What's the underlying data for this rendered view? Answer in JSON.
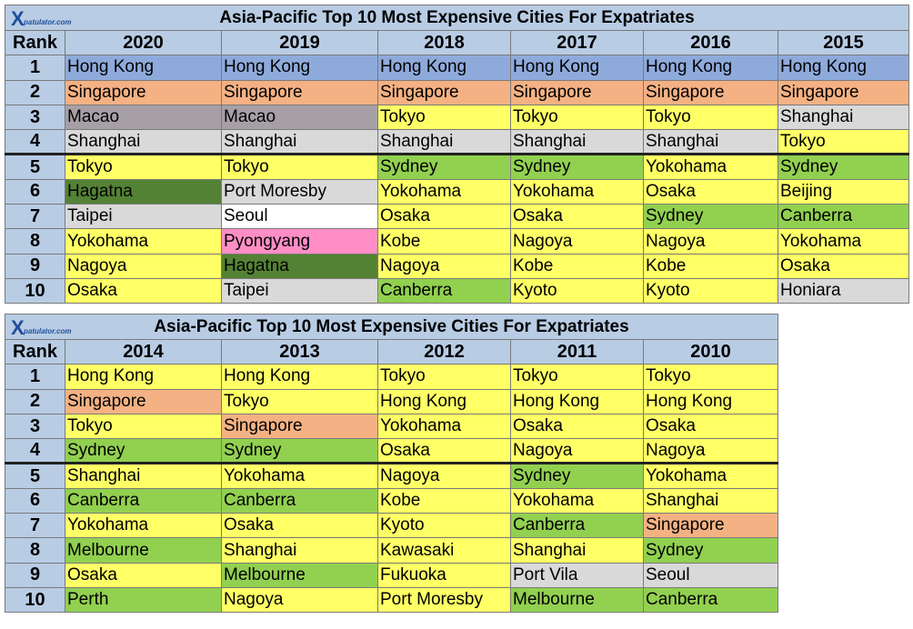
{
  "logo": {
    "brand": "Xpatulator.com"
  },
  "colors": {
    "header": "#b8cce4",
    "hong_kong": "#8eaadb",
    "yellow": "#ffff66",
    "salmon": "#f4b183",
    "gray": "#a6a0a6",
    "light_gray": "#d9d9d9",
    "green": "#92d050",
    "dark_green": "#548235",
    "pink": "#ff8ec6"
  },
  "table_a": {
    "title": "Asia-Pacific Top 10 Most Expensive Cities For Expatriates",
    "rank_label": "Rank",
    "years": [
      "2020",
      "2019",
      "2018",
      "2017",
      "2016",
      "2015"
    ],
    "ranks": [
      "1",
      "2",
      "3",
      "4",
      "5",
      "6",
      "7",
      "8",
      "9",
      "10"
    ],
    "rows": [
      [
        "Hong Kong",
        "Hong Kong",
        "Hong Kong",
        "Hong Kong",
        "Hong Kong",
        "Hong Kong"
      ],
      [
        "Singapore",
        "Singapore",
        "Singapore",
        "Singapore",
        "Singapore",
        "Singapore"
      ],
      [
        "Macao",
        "Macao",
        "Tokyo",
        "Tokyo",
        "Tokyo",
        "Shanghai"
      ],
      [
        "Shanghai",
        "Shanghai",
        "Shanghai",
        "Shanghai",
        "Shanghai",
        "Tokyo"
      ],
      [
        "Tokyo",
        "Tokyo",
        "Sydney",
        "Sydney",
        "Yokohama",
        "Sydney"
      ],
      [
        "Hagatna",
        "Port Moresby",
        "Yokohama",
        "Yokohama",
        "Osaka",
        "Beijing"
      ],
      [
        "Taipei",
        "Seoul",
        "Osaka",
        "Osaka",
        "Sydney",
        "Canberra"
      ],
      [
        "Yokohama",
        "Pyongyang",
        "Kobe",
        "Nagoya",
        "Nagoya",
        "Yokohama"
      ],
      [
        "Nagoya",
        "Hagatna",
        "Nagoya",
        "Kobe",
        "Kobe",
        "Osaka"
      ],
      [
        "Osaka",
        "Taipei",
        "Canberra",
        "Kyoto",
        "Kyoto",
        "Honiara"
      ]
    ]
  },
  "table_b": {
    "title": "Asia-Pacific Top 10 Most Expensive Cities For Expatriates",
    "rank_label": "Rank",
    "years": [
      "2014",
      "2013",
      "2012",
      "2011",
      "2010"
    ],
    "ranks": [
      "1",
      "2",
      "3",
      "4",
      "5",
      "6",
      "7",
      "8",
      "9",
      "10"
    ],
    "rows": [
      [
        "Hong Kong",
        "Hong Kong",
        "Tokyo",
        "Tokyo",
        "Tokyo"
      ],
      [
        "Singapore",
        "Tokyo",
        "Hong Kong",
        "Hong Kong",
        "Hong Kong"
      ],
      [
        "Tokyo",
        "Singapore",
        "Yokohama",
        "Osaka",
        "Osaka"
      ],
      [
        "Sydney",
        "Sydney",
        "Osaka",
        "Nagoya",
        "Nagoya"
      ],
      [
        "Shanghai",
        "Yokohama",
        "Nagoya",
        "Sydney",
        "Yokohama"
      ],
      [
        "Canberra",
        "Canberra",
        "Kobe",
        "Yokohama",
        "Shanghai"
      ],
      [
        "Yokohama",
        "Osaka",
        "Kyoto",
        "Canberra",
        "Singapore"
      ],
      [
        "Melbourne",
        "Shanghai",
        "Kawasaki",
        "Shanghai",
        "Sydney"
      ],
      [
        "Osaka",
        "Melbourne",
        "Fukuoka",
        "Port Vila",
        "Seoul"
      ],
      [
        "Perth",
        "Nagoya",
        "Port Moresby",
        "Melbourne",
        "Canberra"
      ]
    ]
  }
}
